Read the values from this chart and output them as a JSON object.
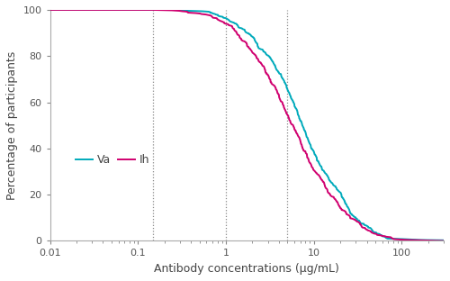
{
  "xlabel": "Antibody concentrations (μg/mL)",
  "ylabel": "Percentage of participants",
  "ylim": [
    0,
    100
  ],
  "xlim": [
    0.01,
    300
  ],
  "vlines": [
    0.15,
    1.0,
    5.0
  ],
  "color_Ih": "#D0006F",
  "color_Va": "#00AABB",
  "legend_labels": [
    "Ih",
    "Va"
  ],
  "yticks": [
    0,
    20,
    40,
    60,
    80,
    100
  ],
  "xtick_labels": [
    "0.01",
    "0.1",
    "1",
    "10",
    "100"
  ],
  "xtick_values": [
    0.01,
    0.1,
    1,
    10,
    100
  ],
  "background": "#ffffff",
  "Ih_mu": 1.8,
  "Ih_sigma": 1.15,
  "Va_mu": 2.05,
  "Va_sigma": 1.1,
  "n_samples": 500
}
